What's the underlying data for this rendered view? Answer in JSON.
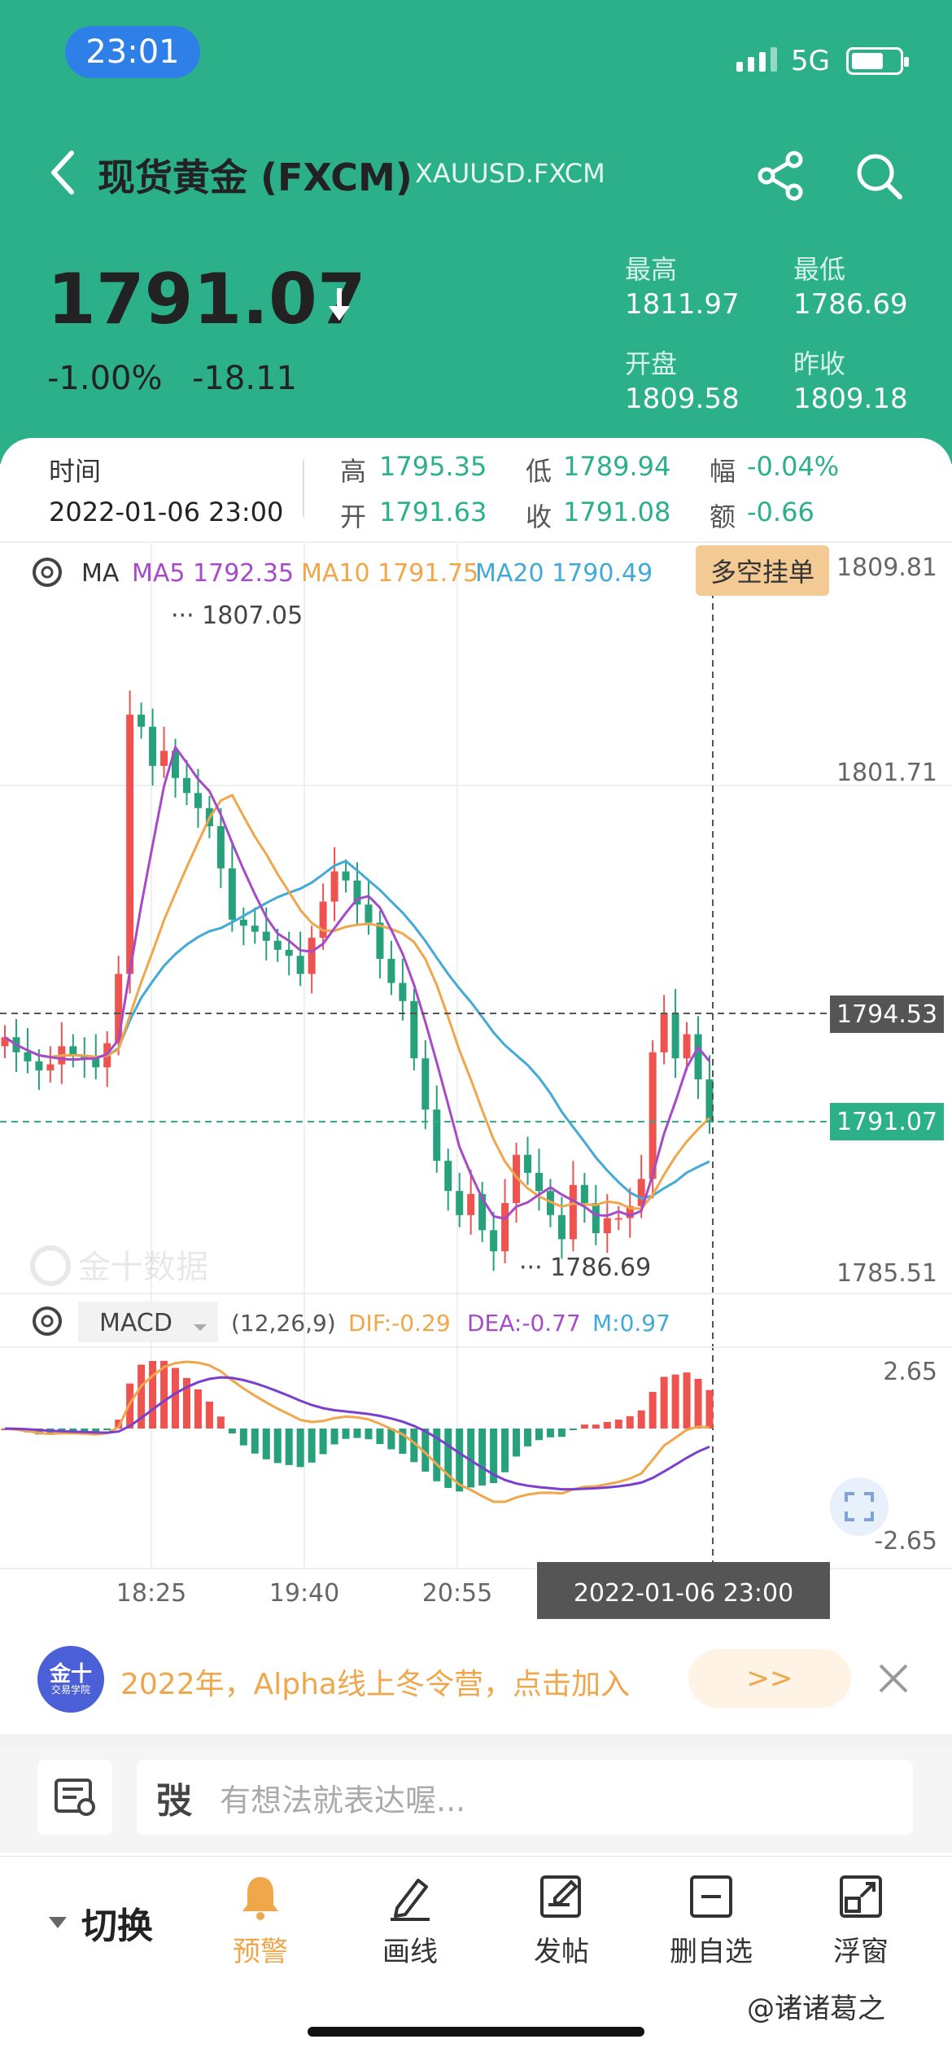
{
  "status_bar": {
    "time": "23:01",
    "network": "5G"
  },
  "header": {
    "title": "现货黄金 (FXCM)",
    "symbol": "XAUUSD.FXCM",
    "price": "1791.07",
    "change_pct": "-1.00%",
    "change_abs": "-18.11",
    "stats": [
      {
        "label": "最高",
        "value": "1811.97"
      },
      {
        "label": "最低",
        "value": "1786.69"
      },
      {
        "label": "开盘",
        "value": "1809.58"
      },
      {
        "label": "昨收",
        "value": "1809.18"
      }
    ]
  },
  "info_card": {
    "time_label": "时间",
    "time_value": "2022-01-06 23:00",
    "high_label": "高",
    "high_value": "1795.35",
    "low_label": "低",
    "low_value": "1789.94",
    "amp_label": "幅",
    "amp_value": "-0.04%",
    "open_label": "开",
    "open_value": "1791.63",
    "close_label": "收",
    "close_value": "1791.08",
    "amount_label": "额",
    "amount_value": "-0.66"
  },
  "price_chart": {
    "indicator": "MA",
    "ma5": "MA5 1792.35",
    "ma10": "MA10 1791.75",
    "ma20": "MA20 1790.49",
    "long_short_button": "多空挂单",
    "y_labels": [
      "1809.81",
      "1801.71",
      "1785.51"
    ],
    "crosshair_price": "1794.53",
    "current_price": "1791.07",
    "peak_label": "1807.05",
    "trough_label": "1786.69",
    "watermark": "金十数据"
  },
  "macd": {
    "indicator": "MACD",
    "params": "(12,26,9)",
    "dif": "DIF:-0.29",
    "dea": "DEA:-0.77",
    "m": "M:0.97",
    "y_top": "2.65",
    "y_bottom": "-2.65"
  },
  "x_axis": {
    "ticks": [
      "18:25",
      "19:40",
      "20:55"
    ],
    "crosshair_time": "2022-01-06 23:00"
  },
  "colors": {
    "up": "#ef5350",
    "down": "#26a17b",
    "ma5": "#a64ac9",
    "ma10": "#f0a64a",
    "ma20": "#43a9d6",
    "header": "#2bb08a"
  },
  "chart_data": {
    "type": "candlestick",
    "x_ticks": [
      "18:25",
      "19:40",
      "20:55"
    ],
    "ylim": [
      1785.51,
      1809.81
    ],
    "close": [
      1793.9,
      1793.4,
      1793.1,
      1792.8,
      1793.0,
      1793.6,
      1793.3,
      1793.2,
      1792.9,
      1793.7,
      1796.0,
      1804.6,
      1804.2,
      1802.9,
      1803.4,
      1802.5,
      1802.0,
      1801.5,
      1800.9,
      1799.5,
      1797.8,
      1797.6,
      1797.4,
      1797.1,
      1796.8,
      1796.6,
      1796.0,
      1797.2,
      1798.4,
      1799.4,
      1799.1,
      1798.3,
      1797.7,
      1796.5,
      1795.7,
      1795.1,
      1793.2,
      1791.5,
      1789.8,
      1788.8,
      1788.0,
      1788.7,
      1787.5,
      1786.8,
      1788.4,
      1790.0,
      1789.4,
      1788.8,
      1788.0,
      1787.2,
      1789.0,
      1788.4,
      1787.4,
      1787.9,
      1787.9,
      1788.3,
      1789.2,
      1793.4,
      1794.7,
      1793.2,
      1794.0,
      1792.5,
      1791.1
    ],
    "ma5": "purple",
    "ma10": "orange",
    "ma20": "blue"
  },
  "promo": {
    "logo_top": "金十",
    "logo_bottom": "交易学院",
    "text": "2022年，Alpha线上冬令营，点击加入",
    "button": ">>"
  },
  "comment": {
    "placeholder": "有想法就表达喔...",
    "prefix": "弢"
  },
  "nav": {
    "switch": "切换",
    "items": [
      {
        "label": "预警",
        "icon": "bell-icon"
      },
      {
        "label": "画线",
        "icon": "pen-icon"
      },
      {
        "label": "发帖",
        "icon": "compose-icon"
      },
      {
        "label": "删自选",
        "icon": "remove-favorite-icon"
      },
      {
        "label": "浮窗",
        "icon": "float-window-icon"
      }
    ]
  },
  "watermark": "@诸诸葛之"
}
